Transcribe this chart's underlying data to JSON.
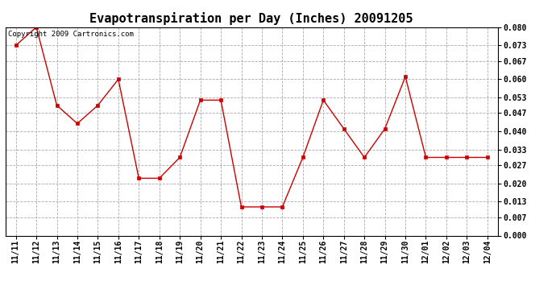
{
  "title": "Evapotranspiration per Day (Inches) 20091205",
  "copyright_text": "Copyright 2009 Cartronics.com",
  "x_labels": [
    "11/11",
    "11/12",
    "11/13",
    "11/14",
    "11/15",
    "11/16",
    "11/17",
    "11/18",
    "11/19",
    "11/20",
    "11/21",
    "11/22",
    "11/23",
    "11/24",
    "11/25",
    "11/26",
    "11/27",
    "11/28",
    "11/29",
    "11/30",
    "12/01",
    "12/02",
    "12/03",
    "12/04"
  ],
  "y_values": [
    0.073,
    0.08,
    0.05,
    0.043,
    0.05,
    0.06,
    0.022,
    0.022,
    0.03,
    0.052,
    0.052,
    0.011,
    0.011,
    0.011,
    0.03,
    0.052,
    0.041,
    0.03,
    0.041,
    0.061,
    0.03,
    0.03,
    0.03,
    0.03
  ],
  "line_color": "#cc0000",
  "marker": "s",
  "marker_size": 2.5,
  "ylim": [
    0.0,
    0.08
  ],
  "yticks": [
    0.0,
    0.007,
    0.013,
    0.02,
    0.027,
    0.033,
    0.04,
    0.047,
    0.053,
    0.06,
    0.067,
    0.073,
    0.08
  ],
  "background_color": "#ffffff",
  "grid_color": "#aaaaaa",
  "title_fontsize": 11,
  "tick_fontsize": 7,
  "copyright_fontsize": 6.5
}
